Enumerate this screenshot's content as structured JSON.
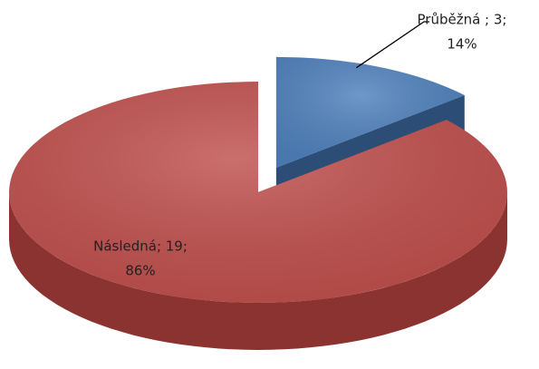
{
  "chart_data": {
    "type": "pie3d",
    "values": [
      3,
      19
    ],
    "value_labels": [
      "Průběžná ; 3;",
      "Následná; 19;"
    ],
    "percents": [
      14,
      86
    ],
    "percent_labels": [
      "14%",
      "86%"
    ],
    "colors": [
      "#4f81bd",
      "#c0504d"
    ],
    "side_colors": [
      "#2c4d75",
      "#8a3330"
    ],
    "exploded": [
      true,
      false
    ]
  }
}
